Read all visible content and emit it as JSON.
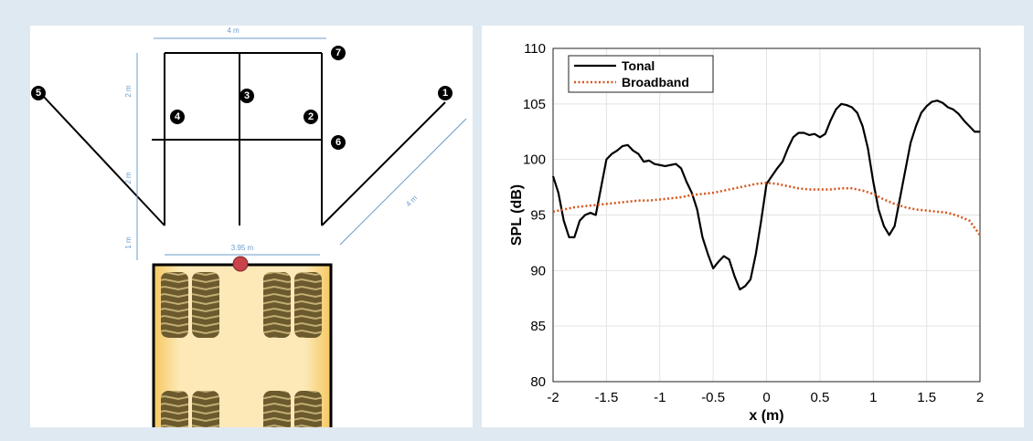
{
  "diagram": {
    "markers": [
      "1",
      "2",
      "3",
      "4",
      "5",
      "6",
      "7"
    ],
    "dimensions": [
      "4 m",
      "2 m",
      "2 m",
      "1 m",
      "3.95 m",
      "4 m"
    ]
  },
  "chart_data": {
    "type": "line",
    "xlabel": "x (m)",
    "ylabel": "SPL (dB)",
    "xlim": [
      -2,
      2
    ],
    "ylim": [
      80,
      110
    ],
    "xticks": [
      -2,
      -1.5,
      -1,
      -0.5,
      0,
      0.5,
      1,
      1.5,
      2
    ],
    "yticks": [
      80,
      85,
      90,
      95,
      100,
      105,
      110
    ],
    "grid": true,
    "legend": "upper left",
    "series": [
      {
        "name": "Tonal",
        "color": "#000000",
        "style": "solid",
        "x": [
          -2,
          -1.95,
          -1.9,
          -1.85,
          -1.8,
          -1.75,
          -1.7,
          -1.65,
          -1.6,
          -1.55,
          -1.5,
          -1.45,
          -1.4,
          -1.35,
          -1.3,
          -1.25,
          -1.2,
          -1.15,
          -1.1,
          -1.05,
          -1,
          -0.95,
          -0.9,
          -0.85,
          -0.8,
          -0.75,
          -0.7,
          -0.65,
          -0.6,
          -0.55,
          -0.5,
          -0.45,
          -0.4,
          -0.35,
          -0.3,
          -0.25,
          -0.2,
          -0.15,
          -0.1,
          -0.05,
          0,
          0.05,
          0.1,
          0.15,
          0.2,
          0.25,
          0.3,
          0.35,
          0.4,
          0.45,
          0.5,
          0.55,
          0.6,
          0.65,
          0.7,
          0.75,
          0.8,
          0.85,
          0.9,
          0.95,
          1,
          1.05,
          1.1,
          1.15,
          1.2,
          1.25,
          1.3,
          1.35,
          1.4,
          1.45,
          1.5,
          1.55,
          1.6,
          1.65,
          1.7,
          1.75,
          1.8,
          1.85,
          1.9,
          1.95,
          2
        ],
        "values": [
          98.5,
          97,
          94.5,
          93,
          93,
          94.5,
          95,
          95.2,
          95,
          97.5,
          100,
          100.5,
          100.8,
          101.2,
          101.3,
          100.8,
          100.5,
          99.8,
          99.9,
          99.6,
          99.5,
          99.4,
          99.5,
          99.6,
          99.2,
          98,
          97,
          95.5,
          93,
          91.5,
          90.2,
          90.8,
          91.3,
          91,
          89.5,
          88.3,
          88.6,
          89.2,
          91.5,
          94.5,
          97.8,
          98.5,
          99.2,
          99.8,
          101,
          102,
          102.4,
          102.4,
          102.2,
          102.3,
          102,
          102.3,
          103.5,
          104.5,
          105,
          104.9,
          104.7,
          104.2,
          103,
          101,
          98,
          95.5,
          94,
          93.2,
          94,
          96.5,
          99,
          101.5,
          103,
          104.2,
          104.8,
          105.2,
          105.3,
          105.1,
          104.7,
          104.5,
          104.1,
          103.5,
          103,
          102.5,
          102.5
        ]
      },
      {
        "name": "Broadband",
        "color": "#d9541a",
        "style": "dotted",
        "x": [
          -2,
          -1.9,
          -1.8,
          -1.7,
          -1.6,
          -1.5,
          -1.4,
          -1.3,
          -1.2,
          -1.1,
          -1,
          -0.9,
          -0.8,
          -0.7,
          -0.6,
          -0.5,
          -0.4,
          -0.3,
          -0.2,
          -0.1,
          0,
          0.1,
          0.2,
          0.3,
          0.4,
          0.5,
          0.6,
          0.7,
          0.8,
          0.9,
          1,
          1.1,
          1.2,
          1.3,
          1.4,
          1.5,
          1.6,
          1.7,
          1.8,
          1.9,
          2
        ],
        "values": [
          95.3,
          95.5,
          95.7,
          95.8,
          95.9,
          96,
          96.1,
          96.2,
          96.3,
          96.3,
          96.4,
          96.5,
          96.6,
          96.8,
          96.9,
          97,
          97.2,
          97.4,
          97.6,
          97.8,
          97.9,
          97.8,
          97.6,
          97.4,
          97.3,
          97.3,
          97.3,
          97.4,
          97.4,
          97.2,
          96.9,
          96.4,
          96,
          95.7,
          95.5,
          95.4,
          95.3,
          95.2,
          94.9,
          94.5,
          93.2
        ]
      }
    ]
  }
}
